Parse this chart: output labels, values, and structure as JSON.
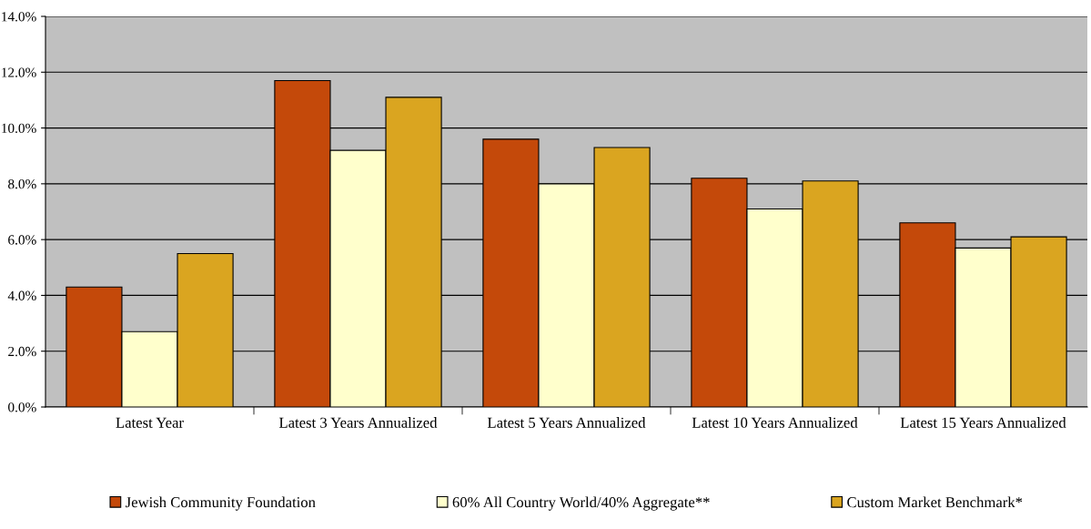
{
  "chart_data": {
    "type": "bar",
    "categories": [
      "Latest Year",
      "Latest 3 Years Annualized",
      "Latest 5 Years Annualized",
      "Latest 10 Years Annualized",
      "Latest 15 Years Annualized"
    ],
    "series": [
      {
        "name": "Jewish Community Foundation",
        "color": "#c4490a",
        "values": [
          4.3,
          11.7,
          9.6,
          8.2,
          6.6
        ]
      },
      {
        "name": "60% All Country World/40% Aggregate**",
        "color": "#ffffcc",
        "values": [
          2.7,
          9.2,
          8.0,
          7.1,
          5.7
        ]
      },
      {
        "name": "Custom Market Benchmark*",
        "color": "#daa520",
        "values": [
          5.5,
          11.1,
          9.3,
          8.1,
          6.1
        ]
      }
    ],
    "ylim": [
      0,
      14
    ],
    "yticks": [
      {
        "value": 0,
        "label": "0.0%"
      },
      {
        "value": 2,
        "label": "2.0%"
      },
      {
        "value": 4,
        "label": "4.0%"
      },
      {
        "value": 6,
        "label": "6.0%"
      },
      {
        "value": 8,
        "label": "8.0%"
      },
      {
        "value": 10,
        "label": "10.0%"
      },
      {
        "value": 12,
        "label": "12.0%"
      },
      {
        "value": 14,
        "label": "14.0%"
      }
    ],
    "grid": "y",
    "legend": "bottom"
  }
}
